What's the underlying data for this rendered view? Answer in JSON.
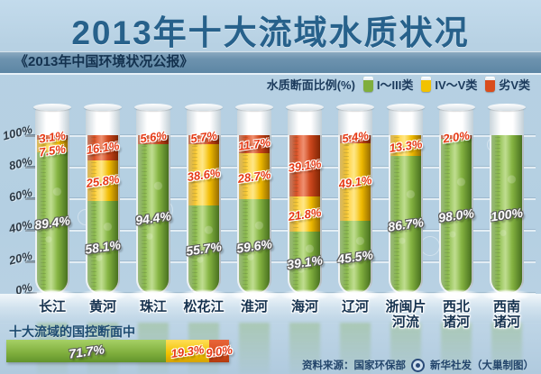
{
  "header": {
    "title": "2013年十大流域水质状况",
    "subtitle": "《2013年中国环境状况公报》"
  },
  "legend": {
    "label": "水质断面比例(%)",
    "items": [
      {
        "name": "I～III类",
        "key": "green"
      },
      {
        "name": "IV～V类",
        "key": "yellow"
      },
      {
        "name": "劣V类",
        "key": "red"
      }
    ]
  },
  "y_axis": {
    "tick_labels": [
      "100%",
      "80%",
      "60%",
      "40%",
      "20%",
      "0%"
    ],
    "tick_values": [
      100,
      80,
      60,
      40,
      20,
      0
    ]
  },
  "chart_data": {
    "type": "bar",
    "stacked": true,
    "orientation": "vertical",
    "unit": "%",
    "ylim": [
      0,
      100
    ],
    "grid": true,
    "legend_position": "top-right",
    "title": "2013年十大流域水质状况",
    "categories": [
      "长江",
      "黄河",
      "珠江",
      "松花江",
      "淮河",
      "海河",
      "辽河",
      "浙闽片河流",
      "西北诸河",
      "西南诸河"
    ],
    "categories_display": [
      [
        "长江"
      ],
      [
        "黄河"
      ],
      [
        "珠江"
      ],
      [
        "松花江"
      ],
      [
        "淮河"
      ],
      [
        "海河"
      ],
      [
        "辽河"
      ],
      [
        "浙闽片",
        "河流"
      ],
      [
        "西北",
        "诸河"
      ],
      [
        "西南",
        "诸河"
      ]
    ],
    "series": [
      {
        "name": "I～III类",
        "key": "green",
        "values": [
          89.4,
          58.1,
          94.4,
          55.7,
          59.6,
          39.1,
          45.5,
          86.7,
          98.0,
          100
        ]
      },
      {
        "name": "IV～V类",
        "key": "yellow",
        "values": [
          7.5,
          25.8,
          0,
          38.6,
          28.7,
          21.8,
          49.1,
          13.3,
          0,
          0
        ]
      },
      {
        "name": "劣V类",
        "key": "red",
        "values": [
          3.1,
          16.1,
          5.6,
          5.7,
          11.7,
          39.1,
          5.4,
          0,
          2.0,
          0
        ]
      }
    ]
  },
  "summary": {
    "heading": "十大流域的国控断面中",
    "segments": [
      {
        "name": "I～III类",
        "key": "green",
        "value": 71.7
      },
      {
        "name": "IV～V类",
        "key": "yellow",
        "value": 19.3
      },
      {
        "name": "劣V类",
        "key": "red",
        "value": 9.0
      }
    ]
  },
  "source": {
    "credit_left": "资料来源：国家环保部",
    "credit_right": "新华社发（大巢制图）"
  },
  "colors": {
    "green": "#7fae3d",
    "yellow": "#f2c200",
    "red": "#d94d1d",
    "background": "#b4cfe2",
    "title_text": "#27618b",
    "navy_text": "#1b3a5c",
    "warm_label_text": "#e63914"
  }
}
